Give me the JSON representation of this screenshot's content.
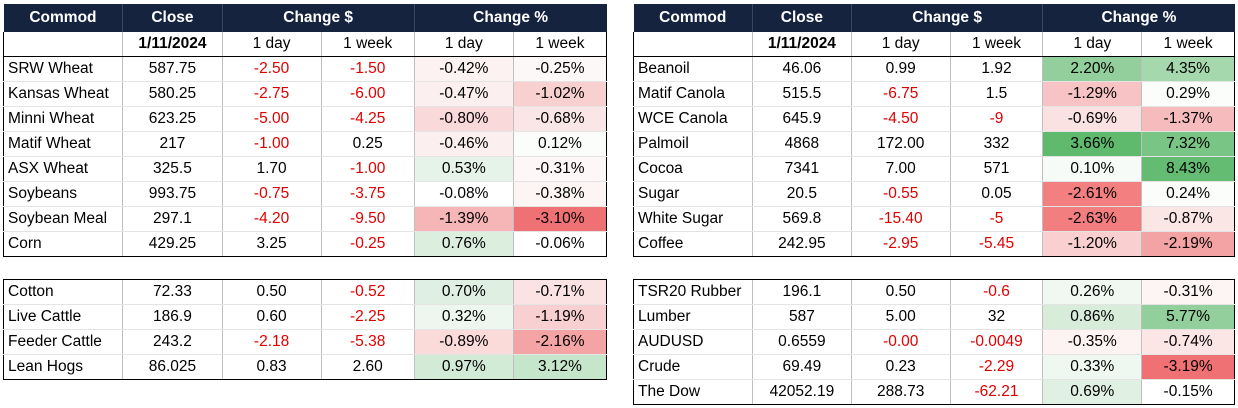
{
  "headers": [
    "Commod",
    "Close",
    "Change $",
    "Change %"
  ],
  "subheaders": {
    "date": "1/11/2024",
    "day": "1 day",
    "week": "1 week"
  },
  "tables": [
    {
      "id": "t1",
      "header": true,
      "groups": [
        5,
        3
      ],
      "rows": [
        {
          "name": "SRW Wheat",
          "close": "587.75",
          "d1": "-2.50",
          "w1": "-1.50",
          "p1": "-0.42%",
          "pw": "-0.25%",
          "c1": "#fdf2f2",
          "cw": "#fdf8f8"
        },
        {
          "name": "Kansas Wheat",
          "close": "580.25",
          "d1": "-2.75",
          "w1": "-6.00",
          "p1": "-0.47%",
          "pw": "-1.02%",
          "c1": "#fcefef",
          "cw": "#f8d0d0"
        },
        {
          "name": "Minni Wheat",
          "close": "623.25",
          "d1": "-5.00",
          "w1": "-4.25",
          "p1": "-0.80%",
          "pw": "-0.68%",
          "c1": "#f9d9da",
          "cw": "#fae6e6"
        },
        {
          "name": "Matif Wheat",
          "close": "217",
          "d1": "-1.00",
          "w1": "0.25",
          "p1": "-0.46%",
          "pw": "0.12%",
          "c1": "#fcefef",
          "cw": "#fbfdfb"
        },
        {
          "name": "ASX Wheat",
          "close": "325.5",
          "d1": "1.70",
          "w1": "-1.00",
          "p1": "0.53%",
          "pw": "-0.31%",
          "c1": "#e6f3e8",
          "cw": "#fdf7f7"
        },
        {
          "name": "Soybeans",
          "close": "993.75",
          "d1": "-0.75",
          "w1": "-3.75",
          "p1": "-0.08%",
          "pw": "-0.38%",
          "c1": "#ffffff",
          "cw": "#fdf4f4"
        },
        {
          "name": "Soybean Meal",
          "close": "297.1",
          "d1": "-4.20",
          "w1": "-9.50",
          "p1": "-1.39%",
          "pw": "-3.10%",
          "c1": "#f6b6b7",
          "cw": "#f07173"
        },
        {
          "name": "Corn",
          "close": "429.25",
          "d1": "3.25",
          "w1": "-0.25",
          "p1": "0.76%",
          "pw": "-0.06%",
          "c1": "#dcefdf",
          "cw": "#ffffff"
        }
      ]
    },
    {
      "id": "t2",
      "header": true,
      "groups": [
        4,
        4
      ],
      "rows": [
        {
          "name": "Beanoil",
          "close": "46.06",
          "d1": "0.99",
          "w1": "1.92",
          "p1": "2.20%",
          "pw": "4.35%",
          "c1": "#93cf9c",
          "cw": "#a6d8ad"
        },
        {
          "name": "Matif Canola",
          "close": "515.5",
          "d1": "-6.75",
          "w1": "1.5",
          "p1": "-1.29%",
          "pw": "0.29%",
          "c1": "#f8c3c4",
          "cw": "#fbfdfb"
        },
        {
          "name": "WCE Canola",
          "close": "645.9",
          "d1": "-4.50",
          "w1": "-9",
          "p1": "-0.69%",
          "pw": "-1.37%",
          "c1": "#fbe2e2",
          "cw": "#f6bcbd"
        },
        {
          "name": "Palmoil",
          "close": "4868",
          "d1": "172.00",
          "w1": "332",
          "p1": "3.66%",
          "pw": "7.32%",
          "c1": "#5fba6e",
          "cw": "#78c585"
        },
        {
          "name": "Cocoa",
          "close": "7341",
          "d1": "7.00",
          "w1": "571",
          "p1": "0.10%",
          "pw": "8.43%",
          "c1": "#f6fbf7",
          "cw": "#63bc72"
        },
        {
          "name": "Sugar",
          "close": "20.5",
          "d1": "-0.55",
          "w1": "0.05",
          "p1": "-2.61%",
          "pw": "0.24%",
          "c1": "#f37f80",
          "cw": "#fbfdfb"
        },
        {
          "name": "White Sugar",
          "close": "569.8",
          "d1": "-15.40",
          "w1": "-5",
          "p1": "-2.63%",
          "pw": "-0.87%",
          "c1": "#f37e80",
          "cw": "#fbe6e6"
        },
        {
          "name": "Coffee",
          "close": "242.95",
          "d1": "-2.95",
          "w1": "-5.45",
          "p1": "-1.20%",
          "pw": "-2.19%",
          "c1": "#f9cfd0",
          "cw": "#f4a3a4"
        }
      ]
    },
    {
      "id": "t3",
      "header": false,
      "groups": [
        4
      ],
      "rows": [
        {
          "name": "Cotton",
          "close": "72.33",
          "d1": "0.50",
          "w1": "-0.52",
          "p1": "0.70%",
          "pw": "-0.71%",
          "c1": "#dff0e2",
          "cw": "#fce3e3"
        },
        {
          "name": "Live Cattle",
          "close": "186.9",
          "d1": "0.60",
          "w1": "-2.25",
          "p1": "0.32%",
          "pw": "-1.19%",
          "c1": "#edf7ef",
          "cw": "#f9d0d1"
        },
        {
          "name": "Feeder Cattle",
          "close": "243.2",
          "d1": "-2.18",
          "w1": "-5.38",
          "p1": "-0.89%",
          "pw": "-2.16%",
          "c1": "#fbdada",
          "cw": "#f5a4a5"
        },
        {
          "name": "Lean Hogs",
          "close": "86.025",
          "d1": "0.83",
          "w1": "2.60",
          "p1": "0.97%",
          "pw": "3.12%",
          "c1": "#d2ebd6",
          "cw": "#c6e6cb"
        }
      ]
    },
    {
      "id": "t4",
      "header": false,
      "groups": [
        5
      ],
      "rows": [
        {
          "name": "TSR20 Rubber",
          "close": "196.1",
          "d1": "0.50",
          "w1": "-0.6",
          "p1": "0.26%",
          "pw": "-0.31%",
          "c1": "#f1f8f2",
          "cw": "#fdf4f4"
        },
        {
          "name": "Lumber",
          "close": "587",
          "d1": "5.00",
          "w1": "32",
          "p1": "0.86%",
          "pw": "5.77%",
          "c1": "#d7edda",
          "cw": "#93cf9c"
        },
        {
          "name": "AUDUSD",
          "close": "0.6559",
          "d1": "-0.00",
          "w1": "-0.0049",
          "p1": "-0.35%",
          "pw": "-0.74%",
          "c1": "#fdf3f3",
          "cw": "#fbe5e5"
        },
        {
          "name": "Crude",
          "close": "69.49",
          "d1": "0.23",
          "w1": "-2.29",
          "p1": "0.33%",
          "pw": "-3.19%",
          "c1": "#eef7f0",
          "cw": "#f07173"
        },
        {
          "name": "The Dow",
          "close": "42052.19",
          "d1": "288.73",
          "w1": "-62.21",
          "p1": "0.69%",
          "pw": "-0.15%",
          "c1": "#e0f0e3",
          "cw": "#ffffff"
        }
      ]
    }
  ]
}
